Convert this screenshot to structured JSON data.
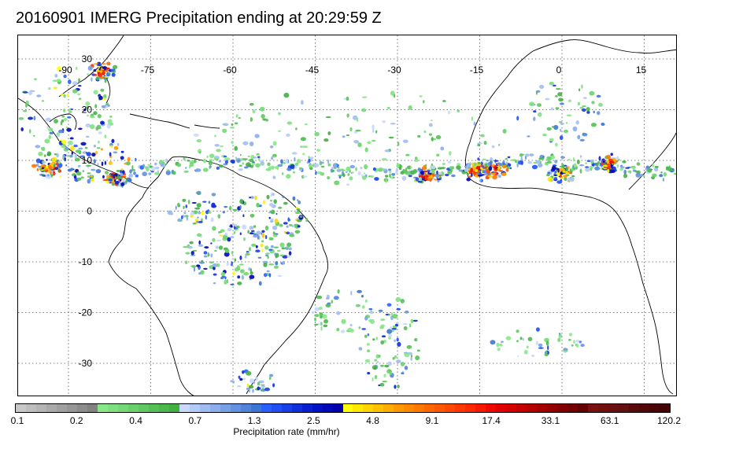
{
  "title": "20160901 IMERG Precipitation ending at 20:29:59 Z",
  "map": {
    "lon_labels": [
      "-90",
      "-75",
      "-60",
      "-45",
      "-30",
      "-15",
      "0",
      "15"
    ],
    "lat_labels": [
      "30",
      "20",
      "10",
      "0",
      "-10",
      "-20",
      "-30"
    ],
    "lon_values": [
      -90,
      -75,
      -60,
      -45,
      -30,
      -15,
      0,
      15
    ],
    "lat_values": [
      30,
      20,
      10,
      0,
      -10,
      -20,
      -30
    ],
    "gridline_style": "dotted"
  },
  "colorbar": {
    "label": "Precipitation rate (mm/hr)",
    "tick_labels": [
      "0.1",
      "0.2",
      "0.4",
      "0.7",
      "1.3",
      "2.5",
      "4.8",
      "9.1",
      "17.4",
      "33.1",
      "63.1",
      "120.2"
    ],
    "colors": [
      "#c8c8c8",
      "#bebebe",
      "#b4b4b4",
      "#aaaaaa",
      "#a0a0a0",
      "#969696",
      "#8c8c8c",
      "#828282",
      "#88e888",
      "#7ee07e",
      "#74d874",
      "#6ad06a",
      "#60c860",
      "#56c056",
      "#4cb84c",
      "#42b042",
      "#c8d8ff",
      "#b4caf8",
      "#a0bcf2",
      "#8caeec",
      "#78a0e6",
      "#6492e0",
      "#5084da",
      "#3c76d4",
      "#2860ff",
      "#2050f4",
      "#1840e8",
      "#1030dc",
      "#0820d0",
      "#0010c4",
      "#0008b8",
      "#0000ac",
      "#ffff00",
      "#ffe800",
      "#ffd400",
      "#ffc000",
      "#ffac00",
      "#ff9800",
      "#ff8800",
      "#ff7800",
      "#ff6800",
      "#ff5800",
      "#ff4800",
      "#ff3800",
      "#ff2800",
      "#f81800",
      "#ee0800",
      "#e00000",
      "#d40000",
      "#c40000",
      "#b40000",
      "#a40000",
      "#940000",
      "#840000",
      "#740000",
      "#640000",
      "#7a1010",
      "#721010",
      "#6a1010",
      "#621010",
      "#5a0a0a",
      "#520808",
      "#4a0606",
      "#420404"
    ]
  }
}
